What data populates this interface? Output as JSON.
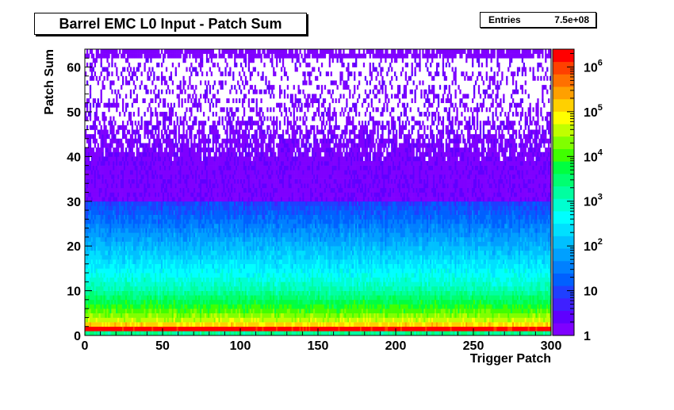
{
  "chart_data": {
    "type": "heatmap",
    "title": "Barrel EMC L0 Input - Patch Sum",
    "xlabel": "Trigger Patch",
    "ylabel": "Patch Sum",
    "xlim": [
      0,
      300
    ],
    "ylim": [
      0,
      64
    ],
    "x_ticks": [
      "0",
      "50",
      "100",
      "150",
      "200",
      "250",
      "300"
    ],
    "y_ticks": [
      "0",
      "10",
      "20",
      "30",
      "40",
      "50",
      "60"
    ],
    "colorbar": {
      "scale": "log",
      "range": [
        1,
        2500000
      ],
      "tick_labels": [
        {
          "value": 1,
          "label": "1"
        },
        {
          "value": 10,
          "label": "10"
        },
        {
          "value": 100,
          "label": "10",
          "exp": "2"
        },
        {
          "value": 1000,
          "label": "10",
          "exp": "3"
        },
        {
          "value": 10000,
          "label": "10",
          "exp": "4"
        },
        {
          "value": 100000,
          "label": "10",
          "exp": "5"
        },
        {
          "value": 1000000,
          "label": "10",
          "exp": "6"
        }
      ],
      "palette": [
        "#7f00ff",
        "#5f00ff",
        "#3f20ff",
        "#1f3fff",
        "#0060ff",
        "#0080ff",
        "#00a0ff",
        "#00c0ff",
        "#00e0ff",
        "#00ffff",
        "#00ffd0",
        "#00ffa0",
        "#00ff70",
        "#00ff40",
        "#40ff00",
        "#80ff00",
        "#c0ff00",
        "#ffff00",
        "#ffd000",
        "#ffa000",
        "#ff7000",
        "#ff4000",
        "#ff0000"
      ]
    },
    "profile_by_patch_sum": [
      {
        "patch_sum": 0,
        "counts": 2000
      },
      {
        "patch_sum": 1,
        "counts": 2000000
      },
      {
        "patch_sum": 2,
        "counts": 120000
      },
      {
        "patch_sum": 3,
        "counts": 40000
      },
      {
        "patch_sum": 5,
        "counts": 12000
      },
      {
        "patch_sum": 10,
        "counts": 1200
      },
      {
        "patch_sum": 15,
        "counts": 300
      },
      {
        "patch_sum": 20,
        "counts": 90
      },
      {
        "patch_sum": 25,
        "counts": 25
      },
      {
        "patch_sum": 30,
        "counts": 8
      },
      {
        "patch_sum": 35,
        "counts": 3
      },
      {
        "patch_sum": 40,
        "counts": 1.5
      },
      {
        "patch_sum": 45,
        "counts": 1
      },
      {
        "patch_sum": 63,
        "counts": 1
      }
    ],
    "grid": false
  },
  "stats": {
    "entries_label": "Entries",
    "entries_value": "7.5e+08"
  }
}
